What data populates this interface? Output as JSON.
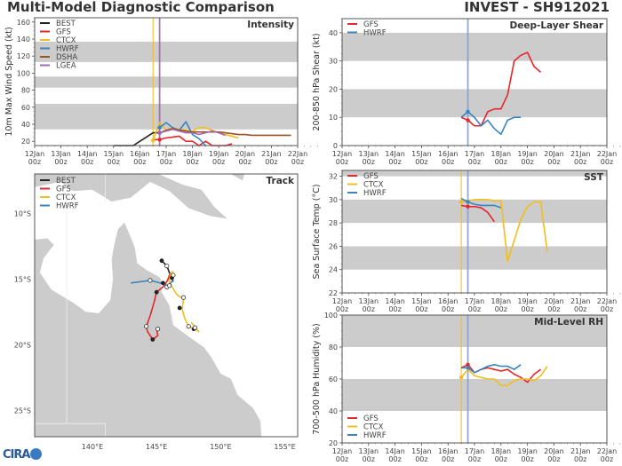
{
  "header": {
    "main_title": "Multi-Model Diagnostic Comparison",
    "storm_title": "INVEST - SH912021",
    "logo_text": "CIRA"
  },
  "colors": {
    "BEST": "#222222",
    "GFS": "#e8262a",
    "CTCX": "#f2be1e",
    "HWRF": "#3a84c0",
    "DSHA": "#9a5228",
    "LGEA": "#a566b0",
    "band": "#cccccc",
    "land": "#cccccc",
    "init_line": "#8a9fc8"
  },
  "time_axis": {
    "ticks": [
      "12Jan\n00z",
      "13Jan\n00z",
      "14Jan\n00z",
      "15Jan\n00z",
      "16Jan\n00z",
      "17Jan\n00z",
      "18Jan\n00z",
      "19Jan\n00z",
      "20Jan\n00z",
      "21Jan\n00z",
      "22Jan\n00z"
    ],
    "range_days": [
      0,
      10
    ]
  },
  "chart_data": [
    {
      "id": "intensity",
      "type": "line",
      "title": "Intensity",
      "ylabel": "10m Max Wind Speed (kt)",
      "ylim": [
        15,
        165
      ],
      "yticks": [
        20,
        40,
        60,
        80,
        100,
        120,
        140,
        160
      ],
      "bands": [
        [
          34,
          64
        ],
        [
          83,
          96
        ],
        [
          113,
          137
        ]
      ],
      "vlines": [
        {
          "x": 4.5,
          "color": "CTCX"
        },
        {
          "x": 4.75,
          "color": "LGEA"
        }
      ],
      "legend": [
        "BEST",
        "GFS",
        "CTCX",
        "HWRF",
        "DSHA",
        "LGEA"
      ],
      "legend_position": "top-left",
      "series": [
        {
          "name": "BEST",
          "x": [
            3.0,
            3.25,
            3.5,
            3.75,
            4.0,
            4.25,
            4.5,
            4.75
          ],
          "y": [
            15,
            15,
            15,
            15,
            20,
            25,
            30,
            30
          ]
        },
        {
          "name": "GFS",
          "x": [
            4.5,
            4.75,
            5.0,
            5.25,
            5.5,
            5.75,
            6.0,
            6.25,
            6.5,
            6.75,
            7.0,
            7.25,
            7.5
          ],
          "y": [
            22,
            22,
            24,
            25,
            26,
            20,
            20,
            15,
            20,
            15,
            12,
            12,
            17
          ]
        },
        {
          "name": "CTCX",
          "x": [
            4.5,
            4.75,
            5.0,
            5.25,
            5.5,
            5.75,
            6.0,
            6.25,
            6.5,
            6.75,
            7.0,
            7.25,
            7.5,
            7.75
          ],
          "y": [
            21,
            42,
            33,
            36,
            34,
            33,
            32,
            36,
            36,
            33,
            30,
            28,
            26,
            24
          ]
        },
        {
          "name": "HWRF",
          "x": [
            4.75,
            5.0,
            5.25,
            5.5,
            5.75,
            6.0,
            6.25,
            6.5
          ],
          "y": [
            36,
            42,
            36,
            33,
            43,
            28,
            23,
            14
          ]
        },
        {
          "name": "DSHA",
          "x": [
            4.75,
            5.0,
            5.25,
            5.5,
            5.75,
            6.0,
            6.25,
            6.5,
            6.75,
            7.0,
            7.25,
            7.5,
            7.75,
            8.0,
            8.25,
            8.5,
            8.75,
            9.0,
            9.25,
            9.5,
            9.75
          ],
          "y": [
            30,
            33,
            35,
            33,
            32,
            31,
            31,
            31,
            31,
            31,
            30,
            29,
            28,
            28,
            27,
            27,
            27,
            27,
            27,
            27,
            27
          ]
        },
        {
          "name": "LGEA",
          "x": [
            4.75,
            5.0,
            5.25,
            5.5,
            5.75,
            6.0,
            6.25,
            6.5,
            6.75,
            7.0,
            7.25
          ],
          "y": [
            30,
            32,
            34,
            32,
            30,
            30,
            28,
            30,
            32,
            30,
            27
          ]
        }
      ]
    },
    {
      "id": "shear",
      "type": "line",
      "title": "Deep-Layer Shear",
      "ylabel": "200-850 hPa Shear (kt)",
      "ylim": [
        0,
        45
      ],
      "yticks": [
        0,
        10,
        20,
        30,
        40
      ],
      "bands": [
        [
          10,
          20
        ],
        [
          30,
          40
        ]
      ],
      "vlines": [
        {
          "x": 4.75,
          "color": "init_line"
        }
      ],
      "legend": [
        "GFS",
        "HWRF"
      ],
      "legend_position": "top-left",
      "series": [
        {
          "name": "GFS",
          "x": [
            4.5,
            4.75,
            5.0,
            5.25,
            5.5,
            5.75,
            6.0,
            6.25,
            6.5,
            6.75,
            7.0,
            7.25,
            7.5
          ],
          "y": [
            10,
            9,
            7,
            7,
            12,
            13,
            13,
            18,
            30,
            32,
            33,
            28,
            26
          ]
        },
        {
          "name": "HWRF",
          "x": [
            4.5,
            4.75,
            5.0,
            5.25,
            5.5,
            5.75,
            6.0,
            6.25,
            6.5,
            6.75
          ],
          "y": [
            10,
            12,
            10,
            7,
            9,
            6,
            4,
            9,
            10,
            10
          ]
        }
      ]
    },
    {
      "id": "sst",
      "type": "line",
      "title": "SST",
      "ylabel": "Sea Surface Temp (°C)",
      "ylim": [
        22,
        32.5
      ],
      "yticks": [
        22,
        24,
        26,
        28,
        30,
        32
      ],
      "bands": [
        [
          24,
          26
        ],
        [
          28,
          30
        ],
        [
          32,
          32.5
        ]
      ],
      "vlines": [
        {
          "x": 4.5,
          "color": "CTCX"
        },
        {
          "x": 4.75,
          "color": "init_line"
        }
      ],
      "legend": [
        "GFS",
        "CTCX",
        "HWRF"
      ],
      "legend_position": "top-left",
      "series": [
        {
          "name": "GFS",
          "x": [
            4.5,
            4.75,
            5.0,
            5.25,
            5.5,
            5.75
          ],
          "y": [
            29.5,
            29.4,
            29.4,
            29.3,
            28.9,
            28.1
          ]
        },
        {
          "name": "CTCX",
          "x": [
            4.5,
            4.75,
            5.0,
            5.25,
            5.5,
            5.75,
            6.0,
            6.25,
            6.5,
            6.75,
            7.0,
            7.25,
            7.5,
            7.75
          ],
          "y": [
            29.8,
            29.9,
            30.0,
            30.0,
            30.0,
            29.9,
            29.9,
            24.7,
            26.5,
            28.3,
            29.4,
            29.8,
            29.8,
            25.5
          ]
        },
        {
          "name": "HWRF",
          "x": [
            4.5,
            4.75,
            5.0,
            5.25,
            5.5,
            5.75,
            6.0
          ],
          "y": [
            30.1,
            29.8,
            29.6,
            29.5,
            29.5,
            29.5,
            29.3
          ]
        }
      ]
    },
    {
      "id": "rh",
      "type": "line",
      "title": "Mid-Level RH",
      "ylabel": "700-500 hPa Humidity (%)",
      "ylim": [
        20,
        100
      ],
      "yticks": [
        20,
        40,
        60,
        80,
        100
      ],
      "bands": [
        [
          40,
          60
        ],
        [
          80,
          100
        ]
      ],
      "vlines": [
        {
          "x": 4.5,
          "color": "CTCX"
        },
        {
          "x": 4.75,
          "color": "init_line"
        }
      ],
      "legend": [
        "GFS",
        "CTCX",
        "HWRF"
      ],
      "legend_position": "bottom-left",
      "series": [
        {
          "name": "GFS",
          "x": [
            4.5,
            4.75,
            5.0,
            5.25,
            5.5,
            5.75,
            6.0,
            6.25,
            6.5,
            6.75,
            7.0,
            7.25,
            7.5
          ],
          "y": [
            67,
            69,
            64,
            66,
            67,
            66,
            65,
            66,
            63,
            61,
            58,
            63,
            66
          ]
        },
        {
          "name": "CTCX",
          "x": [
            4.5,
            4.75,
            5.0,
            5.25,
            5.5,
            5.75,
            6.0,
            6.25,
            6.5,
            6.75,
            7.0,
            7.25,
            7.5,
            7.75
          ],
          "y": [
            61,
            66,
            62,
            61,
            60,
            60,
            56,
            56,
            59,
            60,
            60,
            59,
            62,
            68
          ]
        },
        {
          "name": "HWRF",
          "x": [
            4.5,
            4.75,
            5.0,
            5.25,
            5.5,
            5.75,
            6.0,
            6.25,
            6.5,
            6.75
          ],
          "y": [
            67,
            67,
            64,
            66,
            68,
            69,
            68,
            68,
            66,
            69
          ]
        }
      ]
    },
    {
      "id": "track",
      "type": "scatter",
      "title": "Track",
      "xlim": [
        135.5,
        156
      ],
      "ylim": [
        -27,
        -7
      ],
      "xticks": [
        "140°E",
        "145°E",
        "150°E",
        "155°E"
      ],
      "xtick_values": [
        140,
        145,
        150,
        155
      ],
      "yticks": [
        "10°S",
        "15°S",
        "20°S",
        "25°S"
      ],
      "ytick_values": [
        -10,
        -15,
        -20,
        -25
      ],
      "legend": [
        "BEST",
        "GFS",
        "CTCX",
        "HWRF"
      ],
      "legend_position": "top-left",
      "series": [
        {
          "name": "BEST",
          "lon": [
            145.4,
            145.8,
            146.0,
            146.2,
            146.3
          ],
          "lat": [
            -13.6,
            -14.0,
            -14.5,
            -14.9,
            -15.2
          ]
        },
        {
          "name": "GFS",
          "lon": [
            146.2,
            146.0,
            145.9,
            145.8,
            145.5,
            145.0,
            144.8,
            144.5,
            144.2,
            144.3,
            144.7,
            145.1,
            145.0
          ],
          "lat": [
            -14.6,
            -14.7,
            -15.0,
            -15.2,
            -15.6,
            -16.0,
            -16.8,
            -17.8,
            -18.6,
            -19.0,
            -19.6,
            -19.3,
            -18.8
          ]
        },
        {
          "name": "CTCX",
          "lon": [
            146.3,
            146.1,
            146.0,
            146.4,
            146.6,
            147.1,
            147.0,
            147.2,
            147.5,
            148.0,
            148.3,
            147.7
          ],
          "lat": [
            -14.4,
            -14.6,
            -15.2,
            -15.9,
            -16.2,
            -16.5,
            -17.3,
            -18.0,
            -18.6,
            -18.8,
            -19.0,
            -18.3
          ]
        },
        {
          "name": "HWRF",
          "lon": [
            143.0,
            144.5,
            145.3,
            145.9,
            146.2,
            146.3
          ],
          "lat": [
            -15.3,
            -15.1,
            -15.3,
            -15.5,
            -15.2,
            -14.9
          ]
        }
      ],
      "markers_filled": [
        [
          145.4,
          -13.6
        ],
        [
          146.2,
          -14.9
        ],
        [
          145.5,
          -15.3
        ],
        [
          145.0,
          -16.0
        ],
        [
          144.7,
          -19.6
        ],
        [
          146.8,
          -17.2
        ],
        [
          147.9,
          -18.8
        ]
      ],
      "markers_open": [
        [
          145.8,
          -14.0
        ],
        [
          146.3,
          -14.7
        ],
        [
          145.8,
          -15.6
        ],
        [
          146.0,
          -15.5
        ],
        [
          144.5,
          -15.1
        ],
        [
          147.1,
          -16.4
        ],
        [
          144.2,
          -18.6
        ],
        [
          145.1,
          -18.8
        ],
        [
          147.5,
          -18.6
        ],
        [
          148.0,
          -18.7
        ]
      ]
    }
  ]
}
